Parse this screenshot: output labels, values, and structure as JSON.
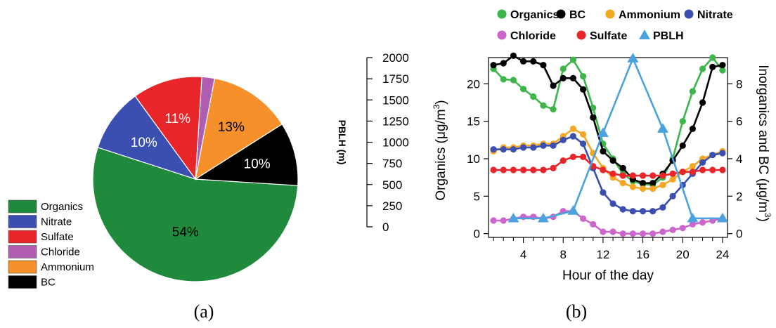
{
  "panel_labels": [
    "(a)",
    "(b)"
  ],
  "chart_data": [
    {
      "type": "pie",
      "title": "",
      "slices": [
        {
          "name": "Organics",
          "value": 54,
          "label": "54%",
          "color": "#1f8a3c"
        },
        {
          "name": "BC",
          "value": 10,
          "label": "10%",
          "color": "#000000"
        },
        {
          "name": "Ammonium",
          "value": 13,
          "label": "13%",
          "color": "#f5902a"
        },
        {
          "name": "Chloride",
          "value": 2,
          "label": "",
          "color": "#b05cb0"
        },
        {
          "name": "Sulfate",
          "value": 11,
          "label": "11%",
          "color": "#e8262a"
        },
        {
          "name": "Nitrate",
          "value": 10,
          "label": "10%",
          "color": "#3b4fb0"
        }
      ],
      "legend": {
        "placement": "bottom-left",
        "entries": [
          {
            "name": "Organics",
            "color": "#1f8a3c"
          },
          {
            "name": "Nitrate",
            "color": "#3b4fb0"
          },
          {
            "name": "Sulfate",
            "color": "#e8262a"
          },
          {
            "name": "Chloride",
            "color": "#b05cb0"
          },
          {
            "name": "Ammonium",
            "color": "#f5902a"
          },
          {
            "name": "BC",
            "color": "#000000"
          }
        ]
      }
    },
    {
      "type": "line",
      "title": "",
      "xlabel": "Hour of the day",
      "xlim": [
        0.5,
        24.5
      ],
      "xticks": [
        4,
        8,
        12,
        16,
        20,
        24
      ],
      "x": [
        1,
        2,
        3,
        4,
        5,
        6,
        7,
        8,
        9,
        10,
        11,
        12,
        13,
        14,
        15,
        16,
        17,
        18,
        19,
        20,
        21,
        22,
        23,
        24
      ],
      "axes": {
        "left": {
          "label": "Organics (μg/m",
          "label_sup": "3",
          "label_tail": ")",
          "ylim": [
            -0.5,
            23.5
          ],
          "ticks": [
            0,
            5,
            10,
            15,
            20
          ]
        },
        "right": {
          "label": "Inorganics and BC (μg/m",
          "label_sup": "3",
          "label_tail": ")",
          "ylim": [
            -0.2,
            9.4
          ],
          "ticks": [
            0,
            2,
            4,
            6,
            8
          ]
        },
        "pblh": {
          "label": "PBLH (m)",
          "ylim": [
            0,
            2000
          ],
          "ticks": [
            0,
            250,
            500,
            750,
            1000,
            1250,
            1500,
            1750,
            2000
          ]
        }
      },
      "series": [
        {
          "name": "Organics",
          "axis": "left",
          "color": "#3db54a",
          "marker": "circle",
          "values": [
            22.0,
            20.6,
            20.5,
            19.3,
            18.3,
            17.1,
            16.6,
            22.0,
            23.2,
            21.0,
            16.8,
            12.0,
            10.0,
            8.0,
            7.0,
            6.6,
            6.5,
            7.5,
            10.0,
            15.0,
            19.0,
            22.0,
            23.5,
            21.8
          ]
        },
        {
          "name": "BC",
          "axis": "right",
          "color": "#000000",
          "marker": "circle",
          "values": [
            9.0,
            9.1,
            9.5,
            9.2,
            9.2,
            9.0,
            7.9,
            8.3,
            8.3,
            7.7,
            6.2,
            4.4,
            3.9,
            3.5,
            2.9,
            2.7,
            2.7,
            3.2,
            3.9,
            4.7,
            5.6,
            7.0,
            8.9,
            9.0
          ]
        },
        {
          "name": "Ammonium",
          "axis": "right",
          "color": "#f5a623",
          "marker": "circle",
          "values": [
            4.4,
            4.6,
            4.6,
            4.7,
            4.7,
            4.8,
            4.8,
            5.2,
            5.6,
            5.3,
            4.3,
            3.5,
            3.0,
            2.7,
            2.5,
            2.4,
            2.4,
            2.6,
            2.9,
            3.3,
            3.6,
            4.0,
            4.2,
            4.4
          ]
        },
        {
          "name": "Nitrate",
          "axis": "right",
          "color": "#3b4fb0",
          "marker": "circle",
          "values": [
            4.5,
            4.5,
            4.5,
            4.6,
            4.6,
            4.7,
            4.7,
            5.0,
            5.2,
            4.8,
            3.5,
            2.2,
            1.6,
            1.3,
            1.2,
            1.2,
            1.2,
            1.4,
            2.0,
            2.6,
            3.2,
            3.8,
            4.2,
            4.3
          ]
        },
        {
          "name": "Chloride",
          "axis": "right",
          "color": "#cc66cc",
          "marker": "circle",
          "values": [
            0.7,
            0.7,
            0.8,
            0.9,
            0.9,
            0.8,
            0.9,
            1.2,
            1.2,
            0.8,
            0.5,
            0.1,
            0.1,
            0.0,
            0.0,
            0.0,
            0.0,
            0.1,
            0.2,
            0.3,
            0.5,
            0.6,
            0.7,
            0.8
          ]
        },
        {
          "name": "Sulfate",
          "axis": "right",
          "color": "#e8262a",
          "marker": "circle",
          "values": [
            3.4,
            3.4,
            3.4,
            3.4,
            3.4,
            3.4,
            3.5,
            3.9,
            4.1,
            4.1,
            3.6,
            3.4,
            3.2,
            3.1,
            3.1,
            3.1,
            3.1,
            3.1,
            3.2,
            3.3,
            3.3,
            3.4,
            3.4,
            3.4
          ]
        },
        {
          "name": "PBLH",
          "axis": "pblh",
          "color": "#4aa3df",
          "marker": "triangle",
          "x": [
            3,
            6,
            9,
            12,
            15,
            18,
            21,
            24
          ],
          "values": [
            100,
            100,
            190,
            1110,
            1990,
            1160,
            100,
            100
          ]
        }
      ],
      "legend": {
        "placement": "top",
        "rows": [
          [
            "Organics",
            "BC",
            "Ammonium",
            "Nitrate"
          ],
          [
            "Chloride",
            "Sulfate",
            "PBLH"
          ]
        ]
      }
    }
  ]
}
